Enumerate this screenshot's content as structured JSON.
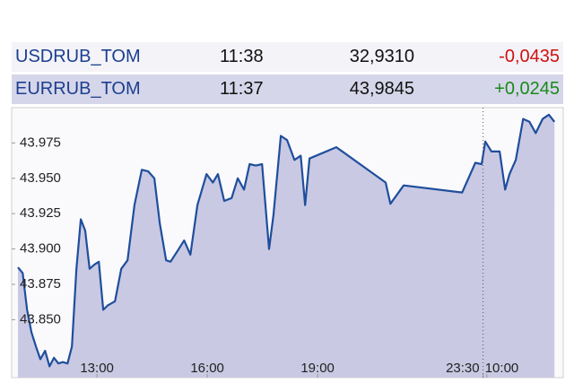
{
  "table": {
    "rows": [
      [
        "USDRUB_TOM",
        "11:38",
        "32,9310",
        "-0,0435"
      ],
      [
        "EURRUB_TOM",
        "11:37",
        "43,9845",
        "+0,0245"
      ]
    ]
  },
  "chart_data": {
    "type": "line",
    "color": "#1f4e9c",
    "fill": "#c9c9e3",
    "x": [
      10.85,
      10.98,
      11.1,
      11.22,
      11.34,
      11.46,
      11.59,
      11.71,
      11.83,
      11.95,
      12.07,
      12.2,
      12.32,
      12.44,
      12.56,
      12.68,
      12.8,
      12.93,
      13.05,
      13.17,
      13.29,
      13.49,
      13.66,
      13.83,
      14.02,
      14.22,
      14.39,
      14.56,
      14.71,
      14.88,
      15.0,
      15.2,
      15.37,
      15.54,
      15.73,
      15.98,
      16.15,
      16.29,
      16.46,
      16.66,
      16.83,
      17.0,
      17.15,
      17.32,
      17.49,
      17.68,
      17.8,
      18.0,
      18.17,
      18.37,
      18.54,
      18.66,
      18.78,
      19.51,
      20.85,
      20.98,
      21.34,
      22.93,
      23.29,
      23.46,
      23.56,
      23.73,
      23.95,
      24.1,
      24.22,
      24.39,
      24.59,
      24.76,
      24.93,
      25.12,
      25.29,
      25.44
    ],
    "values": [
      43.887,
      43.883,
      43.857,
      43.841,
      43.831,
      43.822,
      43.828,
      43.817,
      43.823,
      43.819,
      43.82,
      43.819,
      43.831,
      43.886,
      43.921,
      43.913,
      43.886,
      43.889,
      43.891,
      43.857,
      43.86,
      43.863,
      43.886,
      43.892,
      43.931,
      43.956,
      43.955,
      43.95,
      43.918,
      43.892,
      43.891,
      43.899,
      43.906,
      43.896,
      43.931,
      43.953,
      43.947,
      43.953,
      43.934,
      43.936,
      43.95,
      43.942,
      43.96,
      43.959,
      43.96,
      43.9,
      43.924,
      43.98,
      43.977,
      43.963,
      43.966,
      43.931,
      43.964,
      43.972,
      43.947,
      43.932,
      43.945,
      43.94,
      43.961,
      43.96,
      43.976,
      43.969,
      43.969,
      43.942,
      43.953,
      43.963,
      43.992,
      43.99,
      43.982,
      43.992,
      43.995,
      43.99
    ],
    "xlim": [
      10.68,
      25.68
    ],
    "ylim": [
      43.809,
      44.0
    ],
    "xticks": [
      {
        "value": 13,
        "label": "13:00"
      },
      {
        "value": 16,
        "label": "16:00"
      },
      {
        "value": 19,
        "label": "19:00"
      },
      {
        "value": 23.5,
        "label": "23:30"
      },
      {
        "value": 23.6,
        "label": "10:00"
      }
    ],
    "yticks": [
      {
        "value": 43.85,
        "label": "43.850"
      },
      {
        "value": 43.875,
        "label": "43.875"
      },
      {
        "value": 43.9,
        "label": "43.900"
      },
      {
        "value": 43.925,
        "label": "43.925"
      },
      {
        "value": 43.95,
        "label": "43.950"
      },
      {
        "value": 43.975,
        "label": "43.975"
      }
    ]
  }
}
